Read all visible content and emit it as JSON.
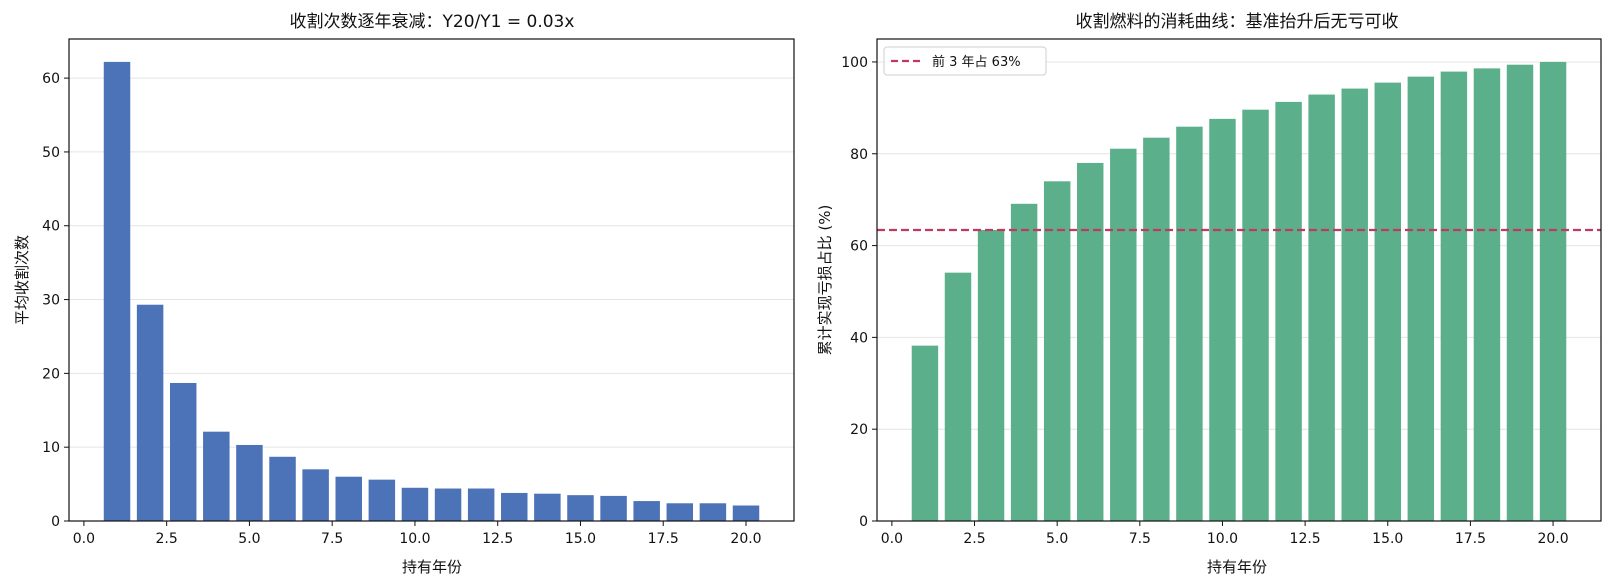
{
  "chart_data": [
    {
      "type": "bar",
      "title": "收割次数逐年衰减：Y20/Y1 = 0.03x",
      "xlabel": "持有年份",
      "ylabel": "平均收割次数",
      "x": [
        1,
        2,
        3,
        4,
        5,
        6,
        7,
        8,
        9,
        10,
        11,
        12,
        13,
        14,
        15,
        16,
        17,
        18,
        19,
        20
      ],
      "values": [
        62.2,
        29.3,
        18.7,
        12.1,
        10.3,
        8.7,
        7.0,
        6.0,
        5.6,
        4.5,
        4.4,
        4.4,
        3.8,
        3.7,
        3.5,
        3.4,
        2.7,
        2.4,
        2.4,
        2.1
      ],
      "xlim": [
        -0.45,
        21.45
      ],
      "ylim": [
        0,
        65.3
      ],
      "xticks": [
        0,
        2.5,
        5,
        7.5,
        10,
        12.5,
        15,
        17.5,
        20
      ],
      "xtick_labels": [
        "0.0",
        "2.5",
        "5.0",
        "7.5",
        "10.0",
        "12.5",
        "15.0",
        "17.5",
        "20.0"
      ],
      "yticks": [
        0,
        10,
        20,
        30,
        40,
        50,
        60
      ],
      "ytick_labels": [
        "0",
        "10",
        "20",
        "30",
        "40",
        "50",
        "60"
      ],
      "bar_color": "#4c72b8",
      "grid": "y"
    },
    {
      "type": "bar",
      "title": "收割燃料的消耗曲线：基准抬升后无亏可收",
      "xlabel": "持有年份",
      "ylabel": "累计实现亏损占比 (%)",
      "x": [
        1,
        2,
        3,
        4,
        5,
        6,
        7,
        8,
        9,
        10,
        11,
        12,
        13,
        14,
        15,
        16,
        17,
        18,
        19,
        20
      ],
      "values": [
        38.2,
        54.1,
        63.4,
        69.1,
        74.0,
        78.0,
        81.1,
        83.5,
        85.9,
        87.6,
        89.6,
        91.3,
        92.9,
        94.2,
        95.5,
        96.8,
        97.9,
        98.6,
        99.4,
        100.0
      ],
      "xlim": [
        -0.45,
        21.45
      ],
      "ylim": [
        0,
        105
      ],
      "xticks": [
        0,
        2.5,
        5,
        7.5,
        10,
        12.5,
        15,
        17.5,
        20
      ],
      "xtick_labels": [
        "0.0",
        "2.5",
        "5.0",
        "7.5",
        "10.0",
        "12.5",
        "15.0",
        "17.5",
        "20.0"
      ],
      "yticks": [
        0,
        20,
        40,
        60,
        80,
        100
      ],
      "ytick_labels": [
        "0",
        "20",
        "40",
        "60",
        "80",
        "100"
      ],
      "bar_color": "#5caf8b",
      "grid": "y",
      "reference_line": {
        "value": 63.4,
        "label": "前 3 年占 63%",
        "color": "#c0395f",
        "style": "dashed"
      },
      "legend_position": "top-left"
    }
  ]
}
